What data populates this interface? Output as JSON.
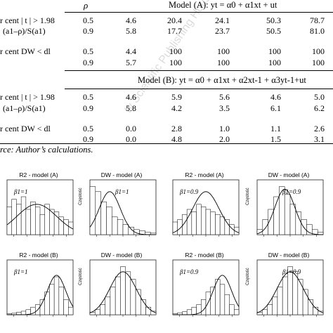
{
  "table": {
    "rho_header": "ρ",
    "model_a_title": "Model (A): yt = α0 + α1xt + ut",
    "model_b_title": "Model (B): yt = α0 + α1xt + α2xt-1 + α3yt-1+ut",
    "row_labels": {
      "t_stat": "r cent | t | > 1.98",
      "ratio": "(a1–ρ)/S(a1)",
      "dw": "r cent DW < dl"
    },
    "model_a": {
      "rows": [
        [
          "0.5",
          "4.6",
          "20.4",
          "24.1",
          "50.3",
          "78.7"
        ],
        [
          "0.9",
          "5.8",
          "17.7",
          "23.7",
          "50.5",
          "81.0"
        ],
        [
          "0.5",
          "4.4",
          "100",
          "100",
          "100",
          "100"
        ],
        [
          "0.9",
          "5.7",
          "100",
          "100",
          "100",
          "100"
        ]
      ]
    },
    "model_b": {
      "rows": [
        [
          "0.5",
          "4.6",
          "5.9",
          "5.6",
          "4.6",
          "5.0"
        ],
        [
          "0.9",
          "5.8",
          "4.2",
          "3.5",
          "6.1",
          "6.2"
        ],
        [
          "0.5",
          "0.0",
          "2.8",
          "1.0",
          "1.1",
          "2.6"
        ],
        [
          "0.9",
          "0.0",
          "4.8",
          "2.0",
          "1.5",
          "3.1"
        ]
      ]
    },
    "source": "rce: Author’s calculations."
  },
  "watermark": "ty Scientific Publishing House",
  "histograms": [
    {
      "title": "R2 - model (A)",
      "beta": "β1=1",
      "ylabel": "",
      "bars": [
        0.55,
        0.7,
        0.6,
        0.75,
        0.5,
        0.65,
        0.55,
        0.4,
        0.6,
        0.5,
        0.45,
        0.35,
        0.3,
        0.25
      ],
      "curve": "bell-wide"
    },
    {
      "title": "DW - model (A)",
      "beta": "β1=1",
      "ylabel": "Częstość",
      "bars": [
        0.95,
        0.85,
        0.65,
        0.55,
        0.35,
        0.3,
        0.2,
        0.15,
        0.1,
        0.08,
        0.05,
        0.03
      ],
      "curve": "skew-left"
    },
    {
      "title": "R2 - model (A)",
      "beta": "β1=0.9",
      "ylabel": "",
      "bars": [
        0.25,
        0.3,
        0.4,
        0.5,
        0.45,
        0.6,
        0.55,
        0.5,
        0.45,
        0.4,
        0.35,
        0.3,
        0.2,
        0.15
      ],
      "curve": "bell"
    },
    {
      "title": "DW - model (A)",
      "beta": "β1=0.9",
      "ylabel": "Częstość",
      "bars": [
        0.1,
        0.3,
        0.5,
        0.75,
        0.95,
        0.8,
        0.6,
        0.45,
        0.3,
        0.2,
        0.1,
        0.05
      ],
      "curve": "bell-narrow"
    },
    {
      "title": "R2 - model (B)",
      "beta": "β1=1",
      "ylabel": "",
      "bars": [
        0.02,
        0.03,
        0.05,
        0.07,
        0.1,
        0.15,
        0.2,
        0.3,
        0.45,
        0.6,
        0.75,
        0.55,
        0.3,
        0.15
      ],
      "curve": "skew-right"
    },
    {
      "title": "DW - model (B)",
      "beta": "",
      "ylabel": "Częstość",
      "bars": [
        0.05,
        0.1,
        0.2,
        0.35,
        0.55,
        0.75,
        0.95,
        0.85,
        0.7,
        0.5,
        0.3,
        0.15,
        0.07
      ],
      "curve": "bell"
    },
    {
      "title": "R2 - model (B)",
      "beta": "β1=0.9",
      "ylabel": "",
      "bars": [
        0.02,
        0.04,
        0.06,
        0.1,
        0.15,
        0.2,
        0.3,
        0.45,
        0.55,
        0.7,
        0.6,
        0.4,
        0.2,
        0.1
      ],
      "curve": "skew-right"
    },
    {
      "title": "DW - model (B)",
      "beta": "β1=0.9",
      "ylabel": "Częstość",
      "bars": [
        0.05,
        0.1,
        0.2,
        0.35,
        0.55,
        0.75,
        0.95,
        0.85,
        0.7,
        0.5,
        0.3,
        0.15,
        0.07
      ],
      "curve": "bell"
    }
  ]
}
